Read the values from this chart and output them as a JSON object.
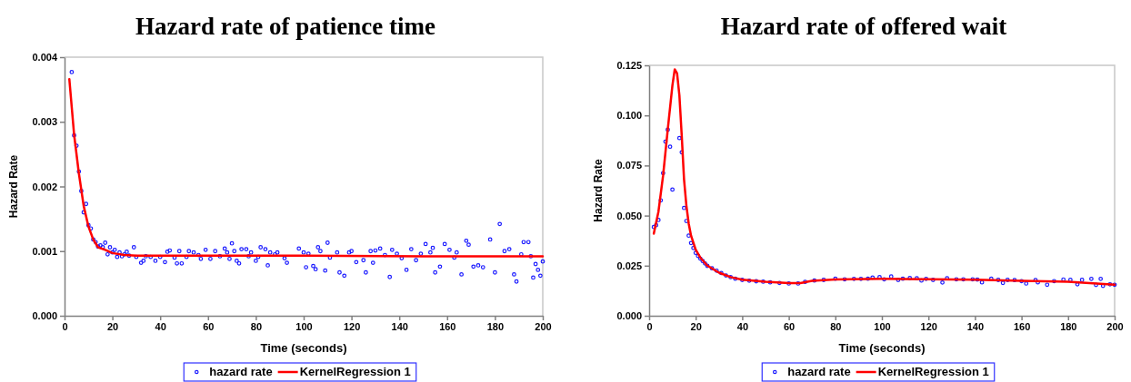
{
  "chart_data": [
    {
      "type": "scatter",
      "title": "Hazard rate of patience time",
      "xlabel": "Time (seconds)",
      "ylabel": "Hazard Rate",
      "xlim": [
        0,
        200
      ],
      "xticks": [
        0,
        20,
        40,
        60,
        80,
        100,
        120,
        140,
        160,
        180,
        200
      ],
      "ylim": [
        0,
        0.004
      ],
      "yticks": [
        {
          "value": 0,
          "label": "0.000"
        },
        0.001,
        0.002,
        0.003,
        0.004
      ],
      "legend": "bottom",
      "series": [
        {
          "name": "hazard rate",
          "marker": "circle",
          "color": "#1a1aff",
          "x": [
            3,
            4,
            5,
            6,
            7,
            8,
            9,
            10,
            11,
            12,
            13,
            14,
            15,
            16,
            17,
            18,
            19,
            20,
            21,
            22,
            23,
            24,
            25,
            26,
            27,
            29,
            30,
            32,
            33,
            34,
            36,
            38,
            40,
            42,
            43,
            44,
            46,
            47,
            48,
            49,
            51,
            52,
            54,
            56,
            57,
            59,
            61,
            63,
            65,
            67,
            68,
            69,
            70,
            71,
            72,
            73,
            74,
            76,
            77,
            78,
            80,
            81,
            82,
            84,
            85,
            86,
            88,
            89,
            92,
            93,
            98,
            100,
            101,
            102,
            104,
            105,
            106,
            107,
            109,
            110,
            111,
            114,
            115,
            117,
            119,
            120,
            122,
            125,
            126,
            128,
            129,
            130,
            132,
            134,
            136,
            137,
            139,
            141,
            143,
            145,
            147,
            149,
            151,
            153,
            154,
            155,
            157,
            159,
            161,
            163,
            164,
            166,
            168,
            169,
            171,
            173,
            175,
            178,
            180,
            182,
            184,
            186,
            188,
            189,
            191,
            192,
            194,
            195,
            196,
            197,
            198,
            199,
            200
          ],
          "values": [
            0.00377,
            0.00279,
            0.00263,
            0.00223,
            0.00193,
            0.0016,
            0.00173,
            0.0014,
            0.00135,
            0.00118,
            0.00114,
            0.00107,
            0.00109,
            0.00106,
            0.00113,
            0.00095,
            0.00106,
            0.00098,
            0.00102,
            0.00091,
            0.00098,
            0.00092,
            0.00095,
            0.00099,
            0.00093,
            0.00106,
            0.00091,
            0.00082,
            0.00085,
            0.00092,
            0.00091,
            0.00085,
            0.00091,
            0.00083,
            0.00099,
            0.00101,
            0.0009,
            0.00081,
            0.001,
            0.00081,
            0.00091,
            0.001,
            0.00098,
            0.00094,
            0.00088,
            0.00102,
            0.00088,
            0.001,
            0.00092,
            0.00104,
            0.00098,
            0.00088,
            0.00112,
            0.001,
            0.00085,
            0.00081,
            0.00103,
            0.00103,
            0.00092,
            0.00098,
            0.00085,
            0.00091,
            0.00106,
            0.00103,
            0.00078,
            0.00098,
            0.00095,
            0.00098,
            0.00089,
            0.00082,
            0.00104,
            0.00098,
            0.00075,
            0.00096,
            0.00077,
            0.00072,
            0.00106,
            0.001,
            0.0007,
            0.00113,
            0.0009,
            0.00098,
            0.00067,
            0.00062,
            0.00098,
            0.001,
            0.00083,
            0.00086,
            0.00067,
            0.001,
            0.00082,
            0.00101,
            0.00104,
            0.00094,
            0.0006,
            0.00102,
            0.00096,
            0.00089,
            0.00071,
            0.00103,
            0.00086,
            0.00096,
            0.00111,
            0.00098,
            0.00105,
            0.00067,
            0.00076,
            0.00111,
            0.00102,
            0.0009,
            0.00098,
            0.00064,
            0.00116,
            0.0011,
            0.00076,
            0.00078,
            0.00075,
            0.00118,
            0.00067,
            0.00142,
            0.001,
            0.00103,
            0.00064,
            0.00053,
            0.00095,
            0.00114,
            0.00114,
            0.00092,
            0.00059,
            0.0008,
            0.00071,
            0.00062,
            0.00084
          ]
        },
        {
          "name": "KernelRegression 1",
          "type": "line",
          "marker": "none",
          "color": "#ff0000",
          "x": [
            2,
            4,
            6,
            8,
            10,
            12,
            14,
            17,
            20,
            25,
            30,
            50,
            100,
            150,
            200
          ],
          "values": [
            0.00366,
            0.0028,
            0.0022,
            0.0017,
            0.00138,
            0.00118,
            0.00106,
            0.00102,
            0.00097,
            0.00094,
            0.00093,
            0.00093,
            0.00093,
            0.00092,
            0.00092
          ]
        }
      ]
    },
    {
      "type": "scatter",
      "title": "Hazard rate of offered wait",
      "xlabel": "Time (seconds)",
      "ylabel": "Hazard Rate",
      "xlim": [
        0,
        200
      ],
      "xticks": [
        0,
        20,
        40,
        60,
        80,
        100,
        120,
        140,
        160,
        180,
        200
      ],
      "ylim": [
        0,
        0.125
      ],
      "yticks": [
        {
          "value": 0,
          "label": "0.000"
        },
        0.025,
        {
          "value": 0.05,
          "label": "0.050"
        },
        0.075,
        {
          "value": 0.1,
          "label": "0.100"
        },
        0.125
      ],
      "legend": "bottom",
      "series": [
        {
          "name": "hazard rate",
          "marker": "circle",
          "color": "#1a1aff",
          "x": [
            2,
            3,
            4,
            5,
            6,
            7,
            8,
            9,
            10,
            13,
            14,
            15,
            16,
            17,
            18,
            19,
            20,
            21,
            22,
            23,
            24,
            25,
            27,
            29,
            31,
            33,
            35,
            37,
            40,
            43,
            46,
            49,
            52,
            56,
            60,
            64,
            67,
            71,
            75,
            80,
            84,
            88,
            91,
            94,
            96,
            99,
            101,
            104,
            107,
            109,
            112,
            115,
            117,
            119,
            122,
            126,
            128,
            132,
            135,
            139,
            141,
            143,
            147,
            150,
            152,
            154,
            157,
            160,
            162,
            166,
            167,
            171,
            174,
            178,
            181,
            184,
            186,
            190,
            192,
            194,
            195,
            198,
            200
          ],
          "values": [
            0.0443,
            0.0452,
            0.0478,
            0.0576,
            0.0712,
            0.0869,
            0.0929,
            0.0844,
            0.063,
            0.0887,
            0.0816,
            0.0538,
            0.0473,
            0.04,
            0.0363,
            0.0338,
            0.0314,
            0.0299,
            0.0285,
            0.0273,
            0.0261,
            0.0249,
            0.0237,
            0.0225,
            0.0213,
            0.0201,
            0.0193,
            0.0185,
            0.0179,
            0.0175,
            0.0172,
            0.017,
            0.0167,
            0.0164,
            0.0161,
            0.0161,
            0.0169,
            0.0176,
            0.0179,
            0.0185,
            0.0182,
            0.0184,
            0.0184,
            0.0185,
            0.0191,
            0.0193,
            0.0182,
            0.0196,
            0.0179,
            0.0185,
            0.0188,
            0.0187,
            0.0176,
            0.0184,
            0.0179,
            0.0166,
            0.0187,
            0.0182,
            0.0182,
            0.0182,
            0.0181,
            0.0167,
            0.0185,
            0.0179,
            0.0164,
            0.0179,
            0.0178,
            0.0173,
            0.0161,
            0.0178,
            0.0167,
            0.0155,
            0.0173,
            0.0181,
            0.0179,
            0.0157,
            0.0179,
            0.0184,
            0.0154,
            0.0184,
            0.0149,
            0.0157,
            0.0155
          ]
        },
        {
          "name": "KernelRegression 1",
          "type": "line",
          "marker": "none",
          "color": "#ff0000",
          "x": [
            2,
            4,
            6,
            8,
            10,
            11,
            12,
            13,
            14,
            15,
            16,
            17,
            18,
            20,
            22,
            25,
            30,
            35,
            40,
            50,
            60,
            65,
            70,
            80,
            100,
            120,
            140,
            160,
            180,
            200
          ],
          "values": [
            0.041,
            0.052,
            0.07,
            0.093,
            0.115,
            0.123,
            0.121,
            0.11,
            0.09,
            0.068,
            0.055,
            0.046,
            0.04,
            0.033,
            0.029,
            0.025,
            0.0215,
            0.0193,
            0.018,
            0.017,
            0.0163,
            0.0163,
            0.0174,
            0.0181,
            0.0184,
            0.0182,
            0.018,
            0.0174,
            0.017,
            0.0155
          ]
        }
      ]
    }
  ]
}
